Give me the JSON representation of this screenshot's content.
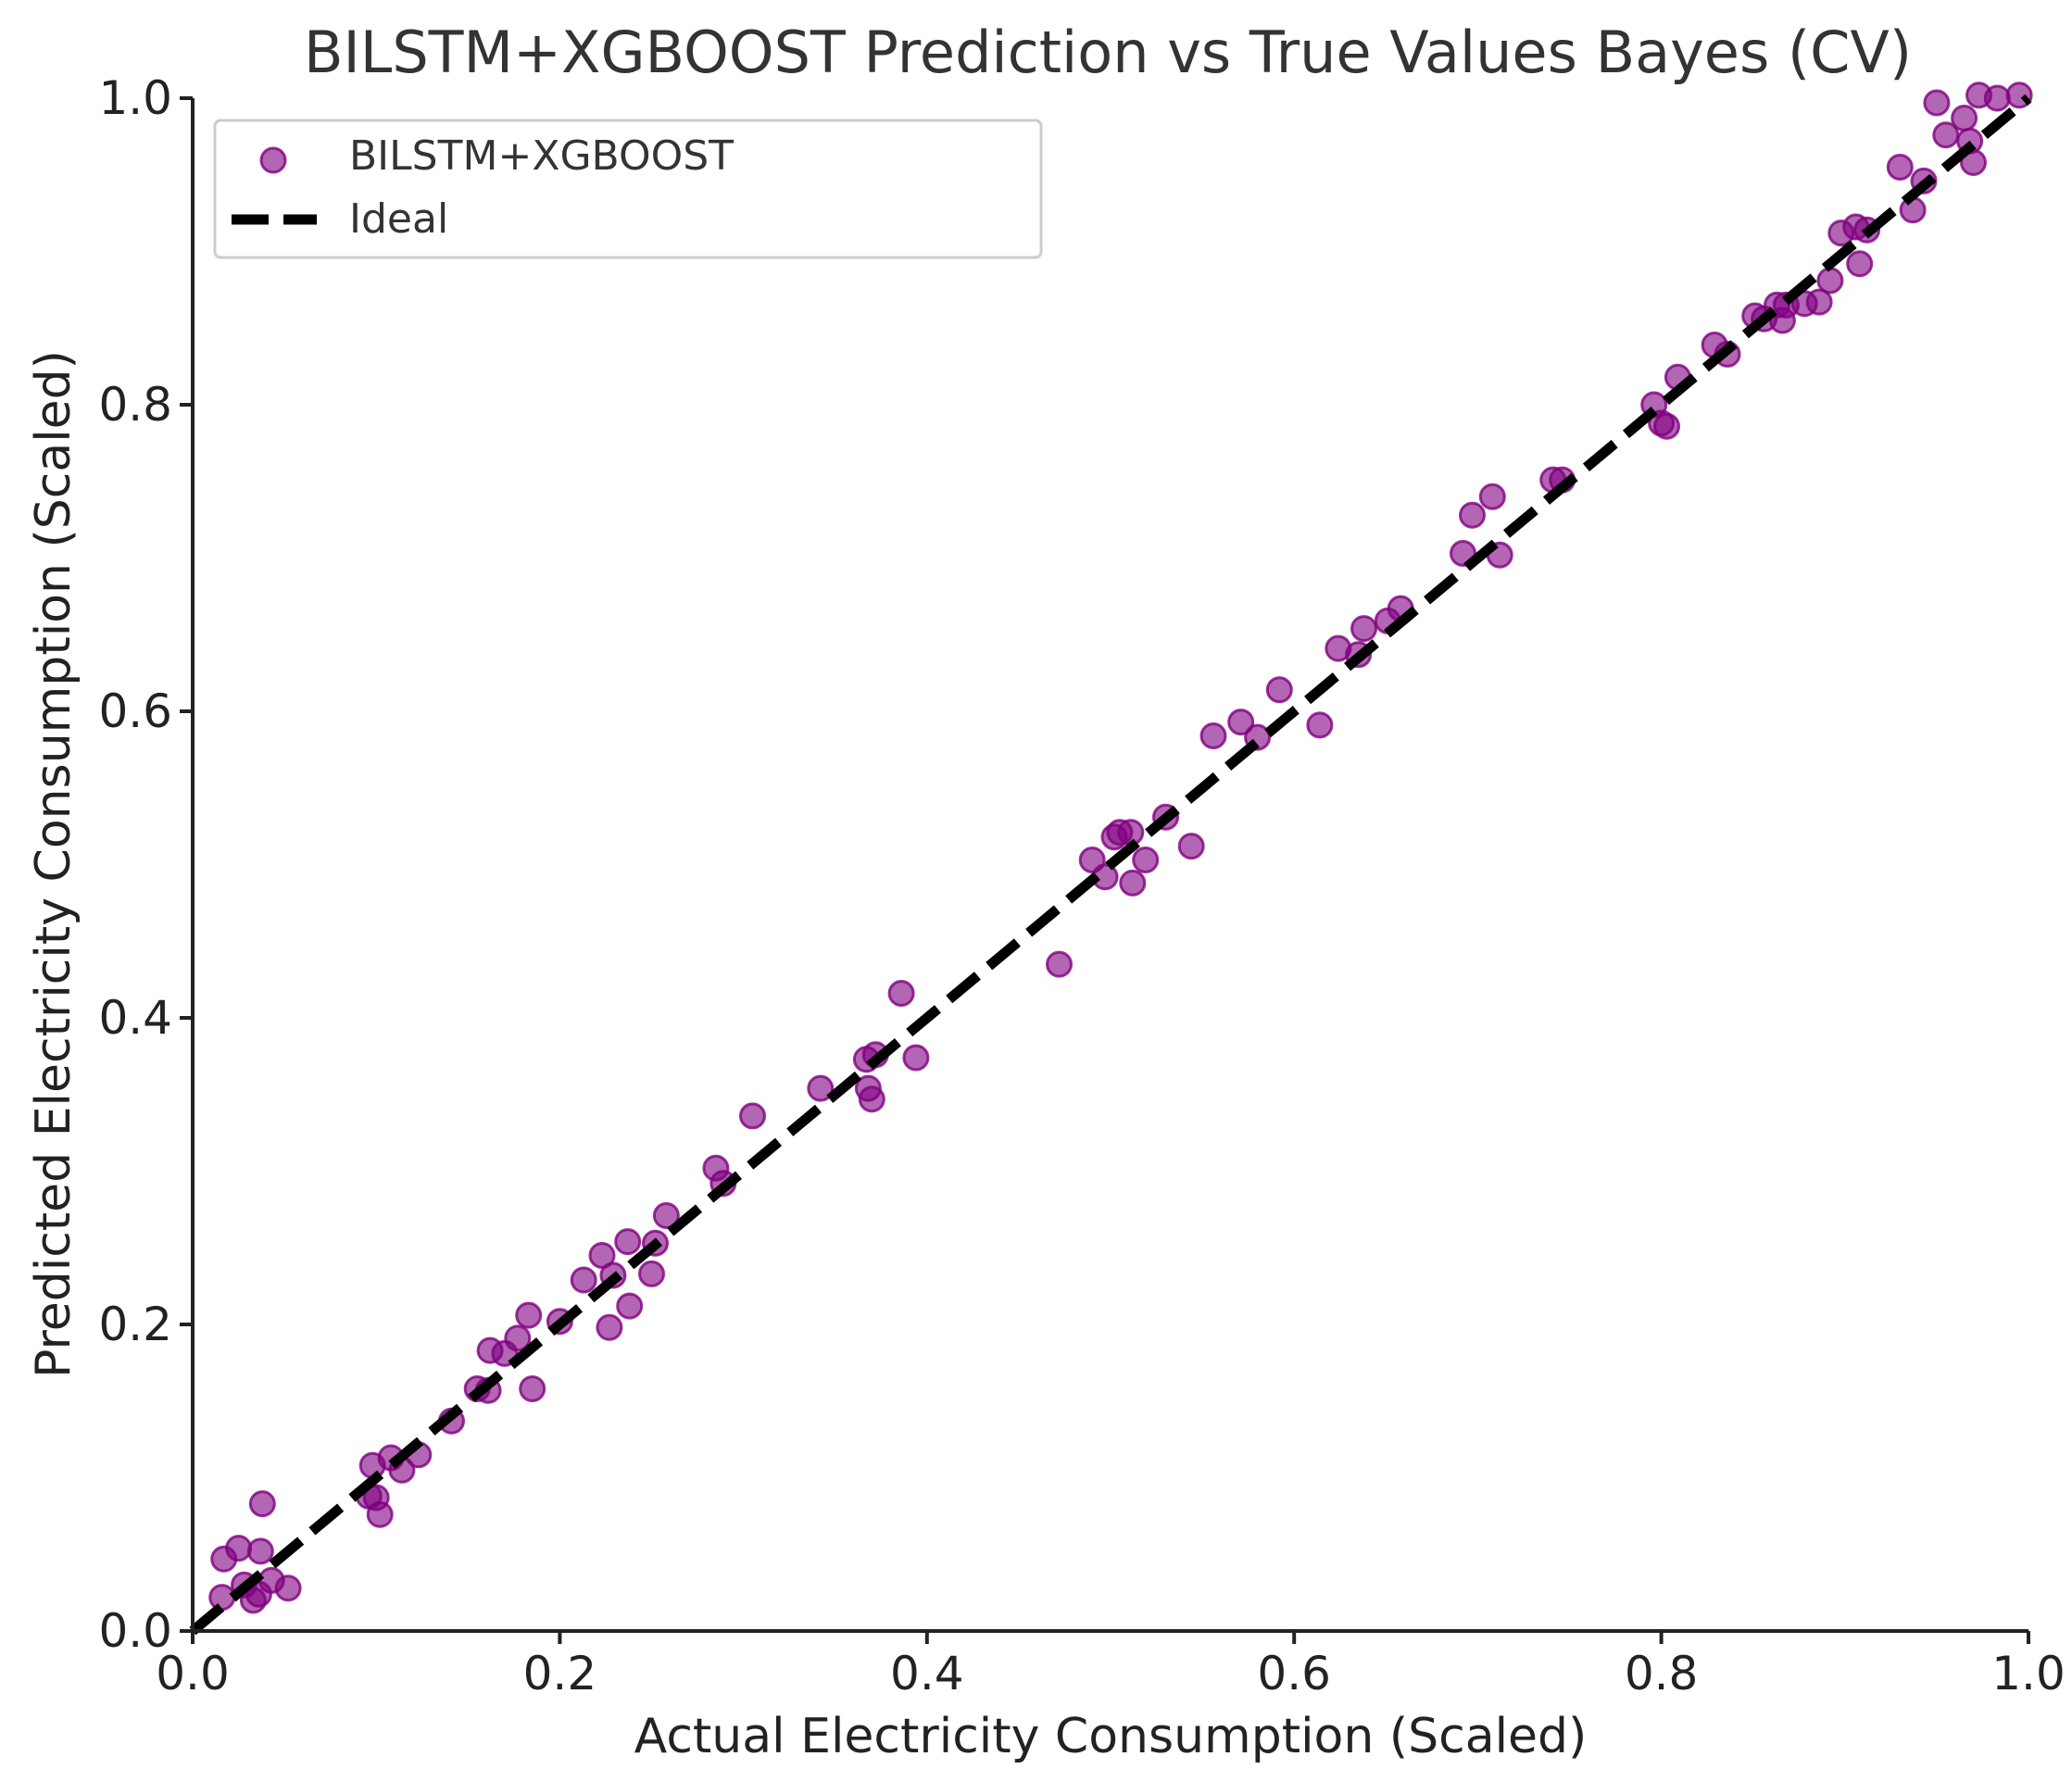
{
  "chart_data": {
    "type": "scatter",
    "title": "BILSTM+XGBOOST Prediction vs True Values Bayes (CV)",
    "xlabel": "Actual Electricity Consumption (Scaled)",
    "ylabel": "Predicted Electricity Consumption (Scaled)",
    "xlim": [
      0.0,
      1.0
    ],
    "ylim": [
      0.0,
      1.0
    ],
    "xticks": [
      "0.0",
      "0.2",
      "0.4",
      "0.6",
      "0.8",
      "1.0"
    ],
    "yticks": [
      "0.0",
      "0.2",
      "0.4",
      "0.6",
      "0.8",
      "1.0"
    ],
    "legend_position": "top-left",
    "series": [
      {
        "name": "BILSTM+XGBOOST",
        "kind": "scatter",
        "color": "#800080",
        "points": [
          [
            0.017,
            0.047
          ],
          [
            0.025,
            0.054
          ],
          [
            0.037,
            0.052
          ],
          [
            0.038,
            0.083
          ],
          [
            0.016,
            0.022
          ],
          [
            0.028,
            0.03
          ],
          [
            0.033,
            0.02
          ],
          [
            0.036,
            0.024
          ],
          [
            0.043,
            0.033
          ],
          [
            0.052,
            0.028
          ],
          [
            0.098,
            0.108
          ],
          [
            0.096,
            0.088
          ],
          [
            0.1,
            0.087
          ],
          [
            0.102,
            0.076
          ],
          [
            0.108,
            0.113
          ],
          [
            0.114,
            0.105
          ],
          [
            0.123,
            0.115
          ],
          [
            0.141,
            0.137
          ],
          [
            0.155,
            0.158
          ],
          [
            0.161,
            0.157
          ],
          [
            0.162,
            0.183
          ],
          [
            0.17,
            0.181
          ],
          [
            0.177,
            0.191
          ],
          [
            0.183,
            0.206
          ],
          [
            0.185,
            0.158
          ],
          [
            0.2,
            0.202
          ],
          [
            0.213,
            0.229
          ],
          [
            0.223,
            0.245
          ],
          [
            0.227,
            0.198
          ],
          [
            0.229,
            0.232
          ],
          [
            0.237,
            0.254
          ],
          [
            0.238,
            0.212
          ],
          [
            0.25,
            0.233
          ],
          [
            0.252,
            0.253
          ],
          [
            0.258,
            0.271
          ],
          [
            0.285,
            0.302
          ],
          [
            0.289,
            0.292
          ],
          [
            0.305,
            0.336
          ],
          [
            0.342,
            0.354
          ],
          [
            0.367,
            0.373
          ],
          [
            0.368,
            0.354
          ],
          [
            0.37,
            0.347
          ],
          [
            0.372,
            0.376
          ],
          [
            0.386,
            0.416
          ],
          [
            0.394,
            0.374
          ],
          [
            0.472,
            0.435
          ],
          [
            0.49,
            0.503
          ],
          [
            0.497,
            0.492
          ],
          [
            0.502,
            0.518
          ],
          [
            0.505,
            0.521
          ],
          [
            0.511,
            0.521
          ],
          [
            0.512,
            0.488
          ],
          [
            0.519,
            0.503
          ],
          [
            0.53,
            0.531
          ],
          [
            0.544,
            0.512
          ],
          [
            0.556,
            0.584
          ],
          [
            0.571,
            0.593
          ],
          [
            0.58,
            0.583
          ],
          [
            0.592,
            0.614
          ],
          [
            0.614,
            0.591
          ],
          [
            0.624,
            0.641
          ],
          [
            0.635,
            0.637
          ],
          [
            0.638,
            0.654
          ],
          [
            0.651,
            0.659
          ],
          [
            0.658,
            0.667
          ],
          [
            0.692,
            0.703
          ],
          [
            0.697,
            0.728
          ],
          [
            0.708,
            0.74
          ],
          [
            0.712,
            0.702
          ],
          [
            0.741,
            0.751
          ],
          [
            0.746,
            0.751
          ],
          [
            0.796,
            0.8
          ],
          [
            0.8,
            0.788
          ],
          [
            0.803,
            0.786
          ],
          [
            0.809,
            0.818
          ],
          [
            0.829,
            0.839
          ],
          [
            0.836,
            0.833
          ],
          [
            0.851,
            0.858
          ],
          [
            0.856,
            0.856
          ],
          [
            0.863,
            0.865
          ],
          [
            0.866,
            0.855
          ],
          [
            0.868,
            0.865
          ],
          [
            0.878,
            0.866
          ],
          [
            0.886,
            0.867
          ],
          [
            0.892,
            0.881
          ],
          [
            0.898,
            0.912
          ],
          [
            0.906,
            0.916
          ],
          [
            0.908,
            0.892
          ],
          [
            0.912,
            0.914
          ],
          [
            0.93,
            0.955
          ],
          [
            0.937,
            0.927
          ],
          [
            0.943,
            0.946
          ],
          [
            0.95,
            0.997
          ],
          [
            0.955,
            0.976
          ],
          [
            0.965,
            0.987
          ],
          [
            0.968,
            0.972
          ],
          [
            0.97,
            0.958
          ],
          [
            0.973,
            1.002
          ],
          [
            0.983,
            1.0
          ],
          [
            0.995,
            1.002
          ]
        ]
      },
      {
        "name": "Ideal",
        "kind": "line",
        "style": "dashed",
        "color": "#000000",
        "points": [
          [
            0.0,
            0.0
          ],
          [
            1.0,
            1.0
          ]
        ]
      }
    ]
  }
}
